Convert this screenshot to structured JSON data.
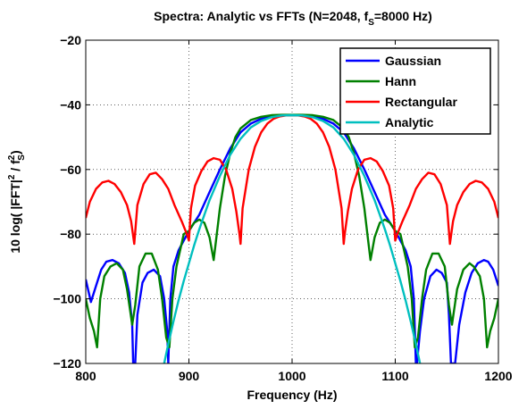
{
  "chart_data": {
    "type": "line",
    "title": "Spectra: Analytic vs FFTs (N=2048,  f",
    "title_sub": "S",
    "title_end": "=8000 Hz)",
    "xlabel": "Frequency (Hz)",
    "ylabel": "10 log( |FFT|",
    "ylabel_sup1": "2",
    "ylabel_mid": " / f",
    "ylabel_sup2": "2",
    "ylabel_sub2": "S",
    "ylabel_end": ")",
    "xlim": [
      800,
      1200
    ],
    "ylim": [
      -120,
      -20
    ],
    "xticks": [
      800,
      900,
      1000,
      1100,
      1200
    ],
    "yticks": [
      -20,
      -40,
      -60,
      -80,
      -100,
      -120
    ],
    "xtick_labels": [
      "800",
      "900",
      "1000",
      "1100",
      "1200"
    ],
    "ytick_labels": [
      "−20",
      "−40",
      "−60",
      "−80",
      "−100",
      "−120"
    ],
    "grid": true,
    "legend_position": "top-right",
    "series": [
      {
        "name": "Gaussian",
        "color": "#0000ff",
        "x": [
          800,
          805,
          810,
          815,
          820,
          826,
          832,
          838,
          842,
          845,
          846,
          848,
          850,
          855,
          860,
          866,
          872,
          876,
          879,
          880,
          882,
          885,
          890,
          895,
          900,
          910,
          920,
          930,
          940,
          950,
          960,
          970,
          980,
          990,
          1000,
          1010,
          1020,
          1030,
          1040,
          1050,
          1060,
          1070,
          1080,
          1090,
          1100,
          1105,
          1110,
          1115,
          1118,
          1120,
          1121,
          1124,
          1128,
          1134,
          1140,
          1145,
          1150,
          1152,
          1154,
          1158,
          1162,
          1168,
          1174,
          1180,
          1186,
          1190,
          1195,
          1200
        ],
        "y": [
          -94,
          -101,
          -96,
          -91,
          -88.5,
          -88,
          -89,
          -92,
          -98,
          -108,
          -120,
          -120,
          -105,
          -95,
          -92,
          -91,
          -93,
          -100,
          -110,
          -120,
          -100,
          -90,
          -85,
          -82,
          -79,
          -74,
          -67,
          -60,
          -53.5,
          -48.5,
          -45.8,
          -44.3,
          -43.6,
          -43.3,
          -43.3,
          -43.3,
          -43.6,
          -44.3,
          -45.8,
          -48.5,
          -53.5,
          -60,
          -67,
          -74,
          -79,
          -82,
          -85,
          -90,
          -100,
          -120,
          -120,
          -110,
          -100,
          -93,
          -91,
          -92,
          -95,
          -105,
          -120,
          -120,
          -108,
          -98,
          -92,
          -89,
          -88,
          -88.5,
          -91,
          -96
        ]
      },
      {
        "name": "Hann",
        "color": "#008000",
        "x": [
          800,
          804,
          808,
          811,
          814,
          818,
          824,
          830,
          836,
          840,
          845,
          848,
          852,
          858,
          864,
          870,
          874,
          878,
          881,
          884,
          888,
          895,
          900,
          905,
          910,
          915,
          920,
          924,
          927,
          930,
          935,
          940,
          945,
          950,
          960,
          970,
          980,
          990,
          1000,
          1010,
          1020,
          1030,
          1040,
          1050,
          1055,
          1060,
          1065,
          1070,
          1073,
          1076,
          1080,
          1085,
          1090,
          1095,
          1100,
          1105,
          1112,
          1116,
          1119,
          1122,
          1126,
          1130,
          1136,
          1142,
          1148,
          1152,
          1155,
          1160,
          1166,
          1172,
          1176,
          1182,
          1186,
          1189,
          1192,
          1196,
          1200
        ],
        "y": [
          -100,
          -106,
          -110,
          -115,
          -100,
          -93,
          -90,
          -89,
          -91,
          -97,
          -108,
          -102,
          -90,
          -86,
          -86,
          -91,
          -100,
          -112,
          -115,
          -100,
          -90,
          -80,
          -79,
          -76.5,
          -75.5,
          -76.5,
          -81,
          -88,
          -80,
          -72,
          -62,
          -55,
          -50,
          -47.3,
          -44.7,
          -43.7,
          -43.2,
          -43.1,
          -43.1,
          -43.1,
          -43.2,
          -43.7,
          -44.7,
          -47.3,
          -50,
          -55,
          -62,
          -72,
          -80,
          -88,
          -81,
          -76.5,
          -75.5,
          -76.5,
          -79,
          -80,
          -90,
          -100,
          -115,
          -112,
          -100,
          -91,
          -86,
          -86,
          -90,
          -102,
          -108,
          -97,
          -91,
          -89,
          -90,
          -93,
          -100,
          -115,
          -110,
          -106,
          -100
        ]
      },
      {
        "name": "Rectangular",
        "color": "#ff0000",
        "x": [
          800,
          804,
          810,
          816,
          822,
          828,
          834,
          840,
          844,
          847,
          850,
          856,
          862,
          868,
          874,
          880,
          886,
          893,
          898,
          900,
          902,
          906,
          912,
          918,
          924,
          930,
          936,
          942,
          946,
          949,
          950,
          952,
          958,
          964,
          970,
          976,
          982,
          988,
          994,
          1000,
          1006,
          1012,
          1018,
          1024,
          1030,
          1036,
          1042,
          1048,
          1050,
          1051,
          1054,
          1058,
          1064,
          1070,
          1076,
          1082,
          1088,
          1094,
          1098,
          1100,
          1102,
          1107,
          1114,
          1120,
          1126,
          1132,
          1138,
          1144,
          1150,
          1153,
          1156,
          1160,
          1166,
          1172,
          1178,
          1184,
          1190,
          1196,
          1200
        ],
        "y": [
          -75,
          -70,
          -66,
          -64,
          -63.5,
          -64.5,
          -67,
          -71,
          -76,
          -83,
          -71,
          -64.5,
          -61.5,
          -61,
          -63,
          -66,
          -71,
          -76,
          -80,
          -82,
          -72,
          -65,
          -60.5,
          -57.5,
          -56.5,
          -57,
          -60,
          -66,
          -73,
          -80,
          -83,
          -72,
          -60,
          -53,
          -48.5,
          -45.8,
          -44.3,
          -43.6,
          -43.3,
          -43.3,
          -43.3,
          -43.6,
          -44.3,
          -45.8,
          -48.5,
          -53,
          -60,
          -72,
          -83,
          -80,
          -73,
          -66,
          -60,
          -57,
          -56.5,
          -57.5,
          -60.5,
          -65,
          -72,
          -82,
          -80,
          -76,
          -71,
          -66,
          -63,
          -61,
          -61.5,
          -64.5,
          -71,
          -83,
          -76,
          -71,
          -67,
          -64.5,
          -63.5,
          -64,
          -66,
          -70,
          -75
        ]
      },
      {
        "name": "Analytic",
        "color": "#00bfbf",
        "x": [
          876,
          880,
          885,
          890,
          895,
          900,
          905,
          910,
          915,
          920,
          930,
          940,
          950,
          960,
          970,
          980,
          990,
          1000,
          1010,
          1020,
          1030,
          1040,
          1050,
          1060,
          1070,
          1080,
          1085,
          1090,
          1095,
          1100,
          1105,
          1110,
          1115,
          1120,
          1124
        ],
        "y": [
          -120,
          -114,
          -107,
          -100.5,
          -94.5,
          -89,
          -83.5,
          -78.5,
          -74,
          -69.5,
          -62,
          -55.5,
          -50.5,
          -47,
          -45,
          -43.8,
          -43.3,
          -43.2,
          -43.3,
          -43.8,
          -45,
          -47,
          -50.5,
          -55.5,
          -62,
          -69.5,
          -74,
          -78.5,
          -83.5,
          -89,
          -94.5,
          -100.5,
          -107,
          -114,
          -120
        ]
      }
    ]
  }
}
